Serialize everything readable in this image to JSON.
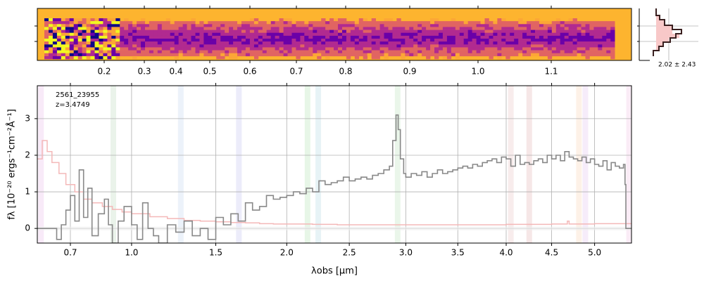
{
  "chart_data": [
    {
      "type": "heatmap",
      "panel": "2D spectrum",
      "colormap": "plasma",
      "x_tick_labels": [
        "0.2",
        "0.3",
        "0.4",
        "0.5",
        "0.6",
        "0.7",
        "0.8",
        "0.9",
        "1.0",
        "1.1"
      ],
      "grid": false
    },
    {
      "type": "area",
      "panel": "spatial profile",
      "annotation": "2.02 ± 2.43",
      "grid": true
    },
    {
      "type": "line",
      "panel": "1D spectrum",
      "object_id": "2561_23955",
      "redshift_label": "z=3.4749",
      "xlabel": "λobs [μm]",
      "ylabel": "fλ [10⁻²⁰ ergs⁻¹cm⁻²Å⁻¹]",
      "xlim": [
        0.56,
        5.45
      ],
      "ylim": [
        -0.4,
        3.9
      ],
      "x_ticks": [
        0.7,
        1.0,
        1.5,
        2.0,
        2.5,
        3.0,
        3.5,
        4.0,
        4.5,
        5.0
      ],
      "x_tick_labels": [
        "0.7",
        "1.0",
        "1.5",
        "2.0",
        "2.5",
        "3.0",
        "3.5",
        "4.0",
        "4.5",
        "5.0"
      ],
      "y_ticks": [
        0,
        1,
        2,
        3
      ],
      "y_tick_labels": [
        "0",
        "1",
        "2",
        "3"
      ],
      "grid": true,
      "line_bands": [
        {
          "x": 0.575,
          "color": "#d070d0"
        },
        {
          "x": 0.905,
          "color": "#70b070"
        },
        {
          "x": 1.28,
          "color": "#80a8e0"
        },
        {
          "x": 1.655,
          "color": "#8080e0"
        },
        {
          "x": 2.16,
          "color": "#60c060"
        },
        {
          "x": 2.245,
          "color": "#60b0c0"
        },
        {
          "x": 2.925,
          "color": "#70c070"
        },
        {
          "x": 4.05,
          "color": "#d08080"
        },
        {
          "x": 4.25,
          "color": "#c06060"
        },
        {
          "x": 4.815,
          "color": "#f0a060"
        },
        {
          "x": 4.89,
          "color": "#c080e0"
        },
        {
          "x": 5.42,
          "color": "#e080c0"
        }
      ],
      "series": [
        {
          "role": "flux",
          "color": "#888888",
          "x": [
            0.56,
            0.6,
            0.64,
            0.66,
            0.68,
            0.7,
            0.72,
            0.74,
            0.76,
            0.78,
            0.8,
            0.83,
            0.86,
            0.88,
            0.9,
            0.93,
            0.96,
            1.0,
            1.03,
            1.06,
            1.09,
            1.12,
            1.15,
            1.2,
            1.25,
            1.3,
            1.35,
            1.4,
            1.45,
            1.5,
            1.55,
            1.6,
            1.65,
            1.7,
            1.75,
            1.8,
            1.85,
            1.9,
            1.95,
            2.0,
            2.05,
            2.1,
            2.15,
            2.2,
            2.25,
            2.3,
            2.35,
            2.4,
            2.45,
            2.5,
            2.55,
            2.6,
            2.65,
            2.7,
            2.75,
            2.8,
            2.85,
            2.88,
            2.91,
            2.93,
            2.95,
            2.98,
            3.0,
            3.05,
            3.1,
            3.15,
            3.2,
            3.25,
            3.3,
            3.35,
            3.4,
            3.45,
            3.5,
            3.55,
            3.6,
            3.65,
            3.7,
            3.75,
            3.8,
            3.85,
            3.9,
            3.95,
            4.0,
            4.05,
            4.1,
            4.15,
            4.2,
            4.25,
            4.3,
            4.35,
            4.4,
            4.45,
            4.5,
            4.55,
            4.6,
            4.65,
            4.7,
            4.75,
            4.8,
            4.85,
            4.9,
            4.95,
            5.0,
            5.05,
            5.1,
            5.15,
            5.2,
            5.25,
            5.3,
            5.35,
            5.37,
            5.38,
            5.45
          ],
          "values": [
            0.0,
            0.0,
            -0.3,
            0.1,
            0.5,
            0.9,
            0.2,
            1.6,
            0.3,
            1.1,
            -0.2,
            0.4,
            0.8,
            0.1,
            -0.4,
            0.2,
            0.6,
            0.1,
            -0.3,
            0.7,
            0.0,
            -0.2,
            -0.4,
            0.1,
            -0.1,
            0.2,
            -0.2,
            0.0,
            -0.3,
            0.3,
            0.1,
            0.4,
            0.2,
            0.7,
            0.5,
            0.6,
            0.9,
            0.8,
            0.85,
            0.9,
            1.0,
            0.95,
            1.1,
            1.0,
            1.3,
            1.2,
            1.25,
            1.3,
            1.4,
            1.3,
            1.35,
            1.4,
            1.35,
            1.45,
            1.5,
            1.6,
            1.7,
            2.4,
            3.1,
            2.7,
            1.9,
            1.5,
            1.4,
            1.5,
            1.45,
            1.55,
            1.4,
            1.5,
            1.6,
            1.5,
            1.55,
            1.6,
            1.65,
            1.7,
            1.65,
            1.75,
            1.7,
            1.8,
            1.85,
            1.9,
            1.8,
            1.95,
            1.9,
            1.7,
            2.0,
            1.75,
            1.8,
            1.75,
            1.85,
            1.9,
            1.8,
            2.0,
            1.9,
            2.0,
            1.85,
            2.1,
            1.95,
            1.9,
            1.85,
            1.95,
            1.8,
            1.9,
            1.75,
            1.7,
            1.85,
            1.6,
            1.8,
            1.7,
            1.65,
            1.75,
            1.2,
            0.0,
            0.0
          ]
        },
        {
          "role": "uncertainty",
          "color": "#f4b8b8",
          "x": [
            0.56,
            0.58,
            0.6,
            0.62,
            0.65,
            0.68,
            0.72,
            0.76,
            0.8,
            0.85,
            0.9,
            0.95,
            1.0,
            1.1,
            1.2,
            1.3,
            1.4,
            1.5,
            1.6,
            1.7,
            1.8,
            1.9,
            2.0,
            2.2,
            2.4,
            2.6,
            2.8,
            3.0,
            3.5,
            4.0,
            4.5,
            4.66,
            4.68,
            4.7,
            5.0,
            5.38,
            5.45
          ],
          "values": [
            1.9,
            2.4,
            2.1,
            1.8,
            1.5,
            1.2,
            1.0,
            0.8,
            0.7,
            0.6,
            0.52,
            0.45,
            0.4,
            0.32,
            0.27,
            0.22,
            0.2,
            0.18,
            0.16,
            0.15,
            0.13,
            0.12,
            0.12,
            0.11,
            0.1,
            0.1,
            0.1,
            0.1,
            0.1,
            0.11,
            0.12,
            0.12,
            0.2,
            0.12,
            0.13,
            0.13,
            0.13
          ]
        }
      ]
    }
  ]
}
